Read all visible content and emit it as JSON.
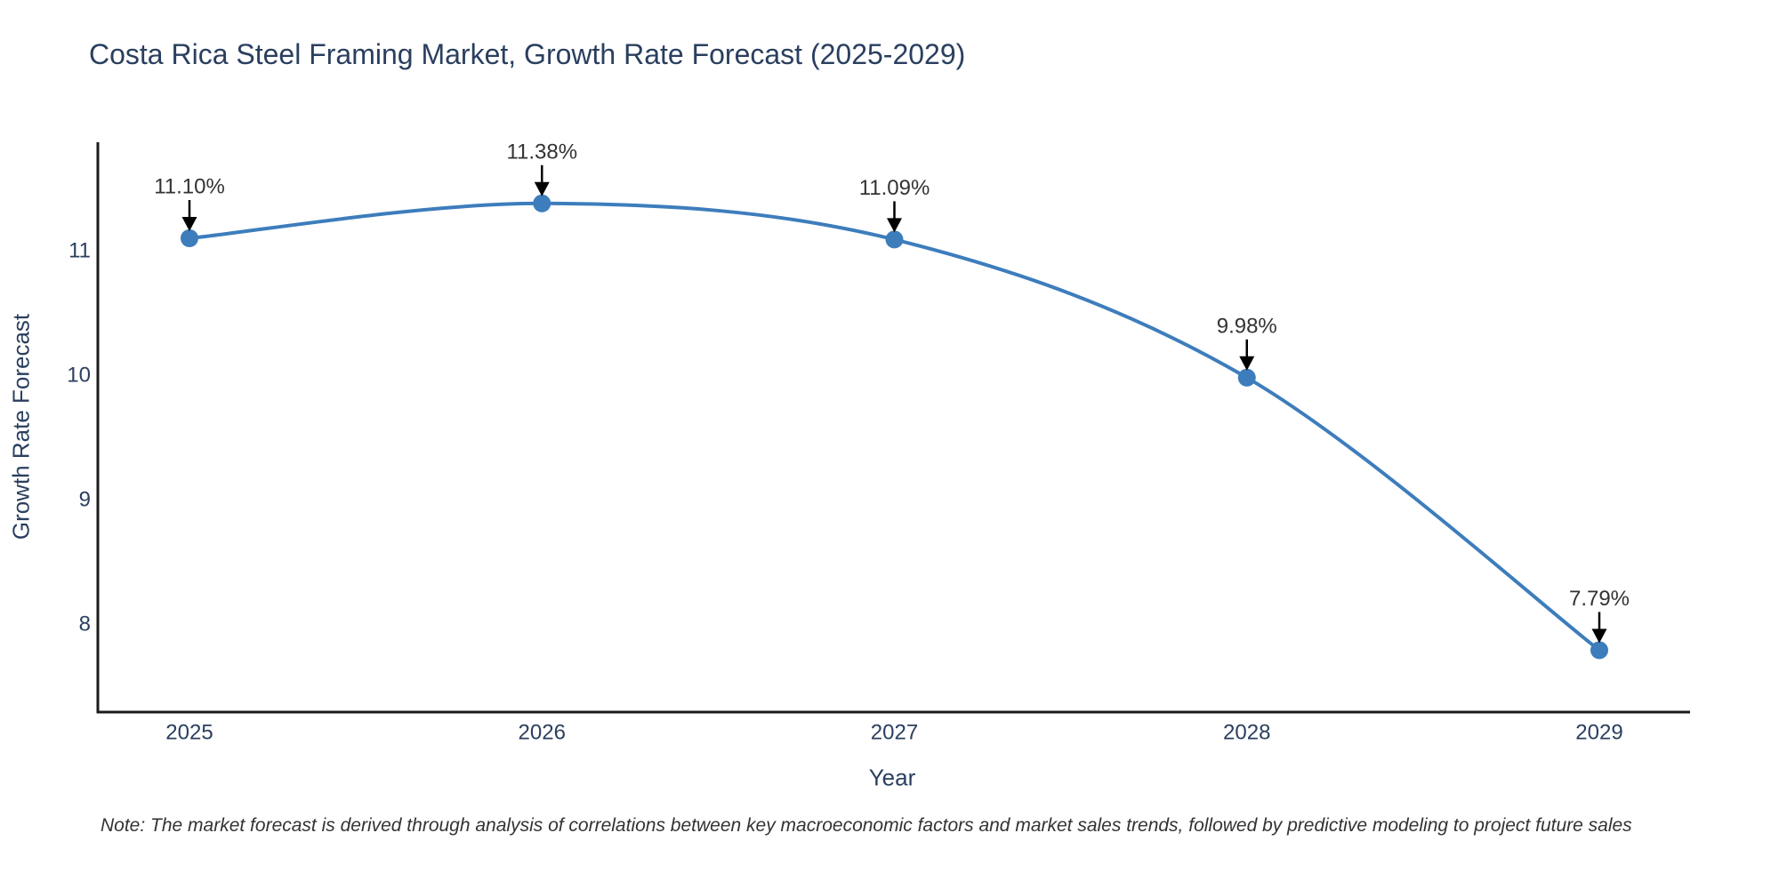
{
  "page": {
    "background": "#ffffff"
  },
  "chart_data": {
    "type": "line",
    "line_shape": "spline",
    "title": "Costa Rica Steel Framing Market, Growth Rate Forecast (2025-2029)",
    "xlabel": "Year",
    "ylabel": "Growth Rate Forecast",
    "x": [
      2025,
      2026,
      2027,
      2028,
      2029
    ],
    "x_tick_labels": [
      "2025",
      "2026",
      "2027",
      "2028",
      "2029"
    ],
    "values": [
      11.1,
      11.38,
      11.09,
      9.98,
      7.79
    ],
    "point_labels": [
      "11.10%",
      "11.38%",
      "11.09%",
      "9.98%",
      "7.79%"
    ],
    "y_ticks": [
      11,
      10,
      9,
      8
    ],
    "y_tick_labels": [
      "11",
      "10",
      "9",
      "8"
    ],
    "ylim": [
      7.3,
      11.9
    ],
    "grid": false,
    "legend": false,
    "colors": {
      "line": "#3d7dbc",
      "marker": "#3d7dbc",
      "axis": "#1a1a1a",
      "text": "#2a3f5f",
      "annotation_text": "#333333",
      "arrow": "#000000"
    }
  },
  "note": "Note: The market forecast is derived through analysis of correlations between key macroeconomic factors and market sales trends, followed by predictive modeling to project future sales"
}
